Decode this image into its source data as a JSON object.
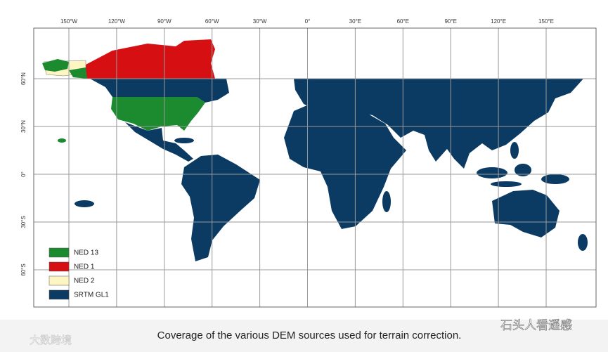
{
  "map": {
    "lon_labels": [
      "150°W",
      "120°W",
      "90°W",
      "60°W",
      "30°W",
      "0°",
      "30°E",
      "60°E",
      "90°E",
      "120°E",
      "150°E"
    ],
    "lat_labels": [
      "60°N",
      "30°N",
      "0°",
      "30°S",
      "60°S"
    ],
    "legend": [
      {
        "label": "NED 13",
        "color": "#1c8a2f"
      },
      {
        "label": "NED 1",
        "color": "#d50f12"
      },
      {
        "label": "NED 2",
        "color": "#fdf6c3"
      },
      {
        "label": "SRTM GL1",
        "color": "#0b3a63"
      }
    ]
  },
  "caption": "Coverage of the various DEM sources used for terrain correction.",
  "watermarks": {
    "left": "大数跨境",
    "right": "石头人看遥感"
  }
}
